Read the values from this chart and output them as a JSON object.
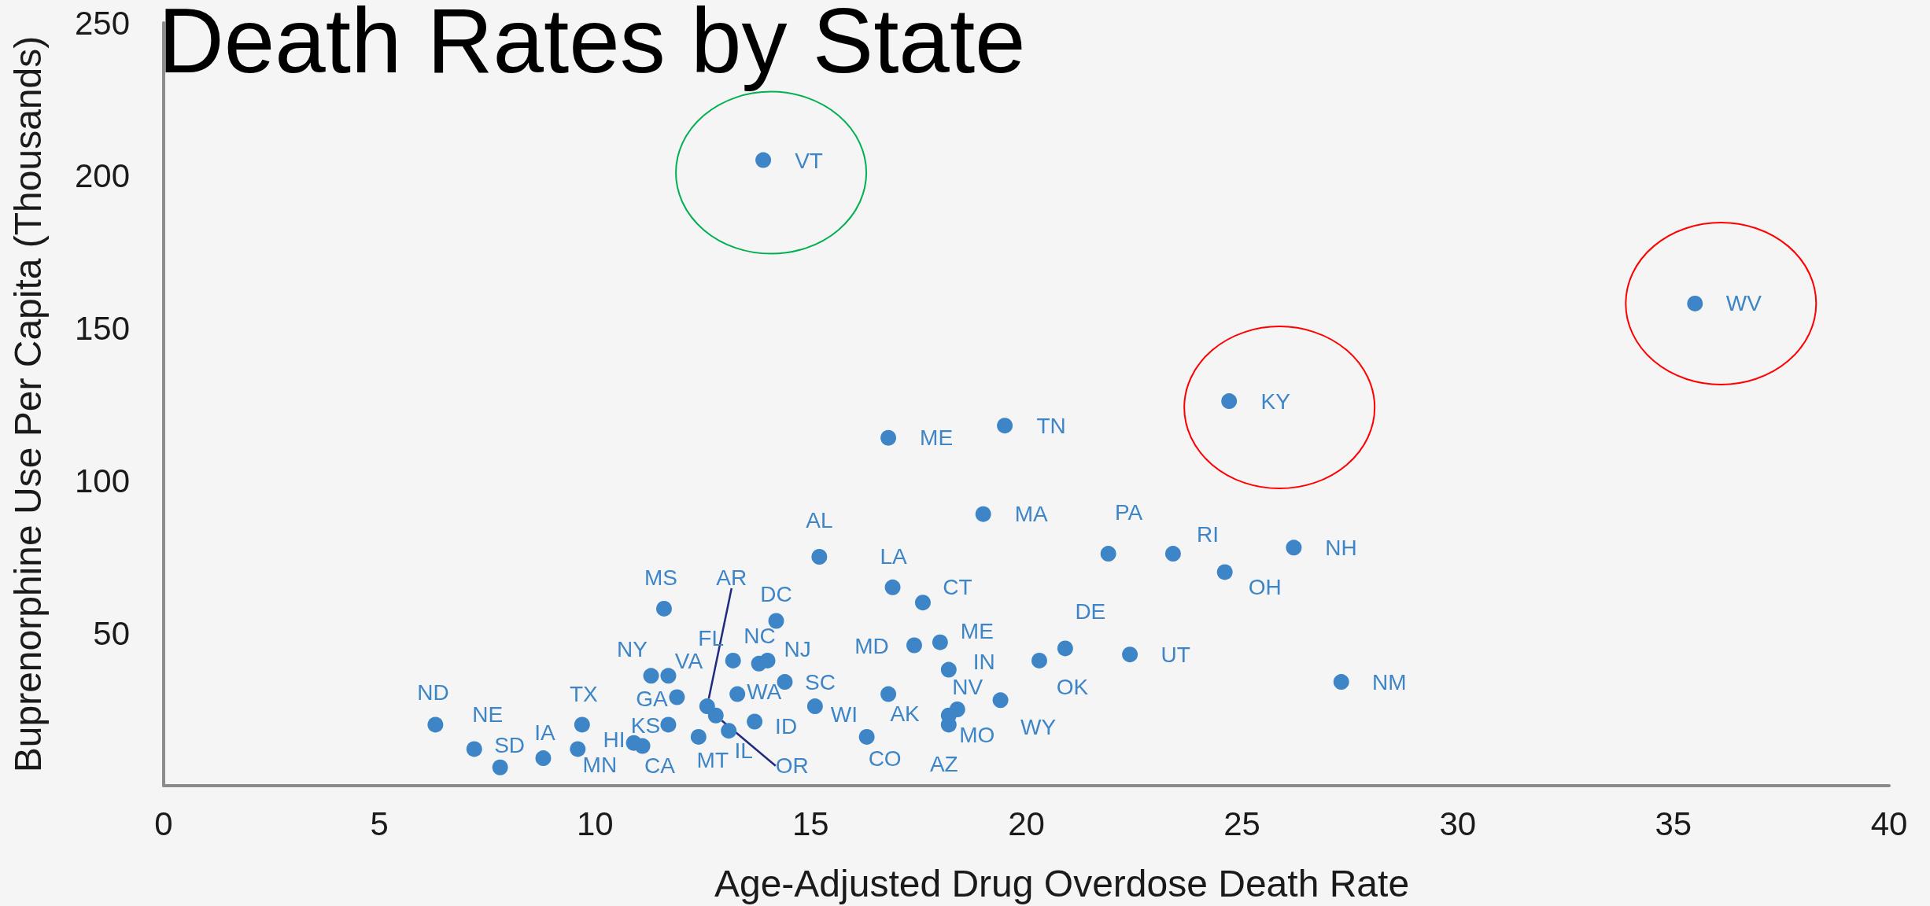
{
  "chart_data": {
    "type": "scatter",
    "title": "Death Rates by State",
    "xlabel": "Age-Adjusted Drug Overdose Death Rate",
    "ylabel": "Buprenorphine Use Per Capita (Thousands)",
    "xlim": [
      0,
      40
    ],
    "xticks": [
      0,
      5,
      10,
      15,
      20,
      25,
      30,
      35,
      40
    ],
    "ylim": [
      0,
      250
    ],
    "yticks": [
      50,
      100,
      150,
      200,
      250
    ],
    "marker": "circle",
    "color": "#3d85c6",
    "x": [
      6.3,
      7.2,
      7.8,
      8.8,
      9.6,
      9.7,
      10.9,
      11.1,
      11.3,
      11.6,
      11.7,
      11.7,
      11.9,
      12.4,
      12.6,
      12.8,
      13.1,
      13.2,
      13.3,
      13.7,
      13.8,
      13.9,
      14.0,
      14.2,
      14.4,
      15.1,
      15.2,
      16.3,
      16.8,
      16.8,
      16.9,
      17.4,
      17.6,
      18.0,
      18.2,
      18.2,
      18.2,
      18.4,
      19.0,
      19.4,
      19.5,
      20.3,
      20.9,
      21.9,
      22.4,
      23.4,
      24.6,
      24.7,
      26.2,
      27.3,
      35.5
    ],
    "values": [
      20,
      12,
      6,
      9,
      12,
      20,
      14,
      13,
      36,
      58,
      20,
      36,
      29,
      16,
      26,
      23,
      18,
      41,
      30,
      21,
      40,
      205,
      41,
      54,
      34,
      26,
      75,
      16,
      114,
      30,
      65,
      46,
      60,
      47,
      38,
      23,
      20,
      25,
      89,
      28,
      118,
      41,
      45,
      76,
      43,
      76,
      70,
      126,
      78,
      34,
      158
    ],
    "value_labels": [
      "ND",
      "NE",
      "SD",
      "IA",
      "MN",
      "TX",
      "HI",
      "CA",
      "NY",
      "MS",
      "KS",
      "VA",
      "GA",
      "MT",
      "AR",
      "OR",
      "IL",
      "FL",
      "WA",
      "ID",
      "NC",
      "VT",
      "NJ",
      "DC",
      "SC",
      "WI",
      "AL",
      "CO",
      "ME",
      "AK",
      "LA",
      "MD",
      "CT",
      "ME",
      "IN",
      "MO",
      "AZ",
      "NV",
      "MA",
      "WY",
      "TN",
      "OK",
      "DE",
      "PA",
      "UT",
      "RI",
      "OH",
      "KY",
      "NH",
      "NM",
      "WV"
    ]
  }
}
